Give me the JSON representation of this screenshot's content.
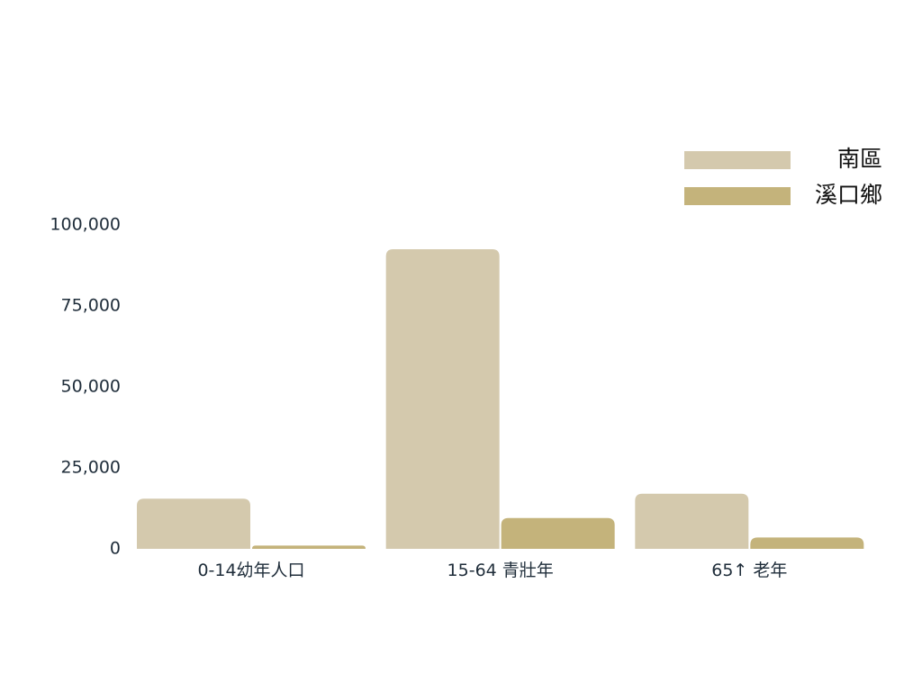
{
  "chart_data": {
    "type": "bar",
    "categories": [
      "0-14幼年人口",
      "15-64 青壯年",
      "65↑ 老年"
    ],
    "series": [
      {
        "name": "南區",
        "values": [
          15500,
          92500,
          17000
        ],
        "color": "#d4c9ad"
      },
      {
        "name": "溪口鄉",
        "values": [
          1000,
          9500,
          3500
        ],
        "color": "#c4b37b"
      }
    ],
    "yticks": [
      "0",
      "25,000",
      "50,000",
      "75,000",
      "100,000"
    ],
    "ytick_values": [
      0,
      25000,
      50000,
      75000,
      100000
    ],
    "ylim": [
      0,
      100000
    ],
    "legend_position": "top-right",
    "grid": false
  }
}
